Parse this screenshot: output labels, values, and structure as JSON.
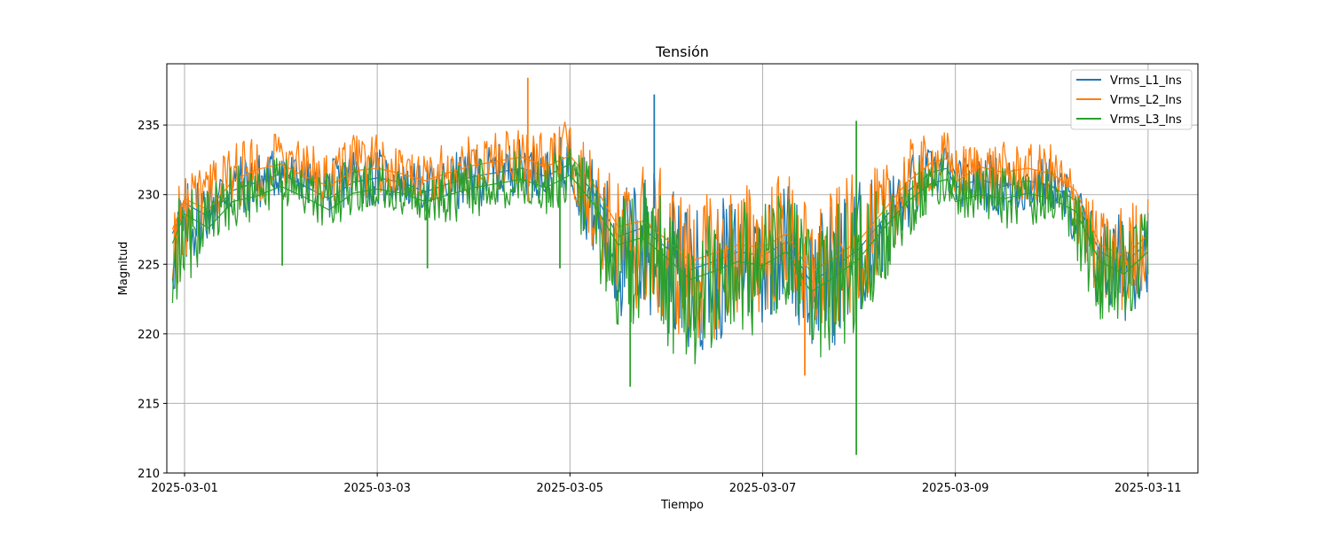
{
  "chart_data": {
    "type": "line",
    "title": "Tensión",
    "xlabel": "Tiempo",
    "ylabel": "Magnitud",
    "ylim": [
      210,
      239.4
    ],
    "xlim": [
      "2025-02-28T19:35",
      "2025-03-11T12:25"
    ],
    "x_ticks": [
      "2025-03-01",
      "2025-03-03",
      "2025-03-05",
      "2025-03-07",
      "2025-03-09",
      "2025-03-11"
    ],
    "y_ticks": [
      210,
      215,
      220,
      225,
      230,
      235
    ],
    "grid": true,
    "legend_position": "top-right",
    "x": [
      "2025-02-28T21:00",
      "2025-03-01T00:00",
      "2025-03-01T06:00",
      "2025-03-01T12:00",
      "2025-03-01T18:00",
      "2025-03-02T00:00",
      "2025-03-02T06:00",
      "2025-03-02T12:00",
      "2025-03-02T18:00",
      "2025-03-03T00:00",
      "2025-03-03T06:00",
      "2025-03-03T12:00",
      "2025-03-03T18:00",
      "2025-03-04T00:00",
      "2025-03-04T06:00",
      "2025-03-04T12:00",
      "2025-03-04T18:00",
      "2025-03-05T00:00",
      "2025-03-05T06:00",
      "2025-03-05T12:00",
      "2025-03-05T18:00",
      "2025-03-06T00:00",
      "2025-03-06T06:00",
      "2025-03-06T12:00",
      "2025-03-06T18:00",
      "2025-03-07T00:00",
      "2025-03-07T06:00",
      "2025-03-07T12:00",
      "2025-03-07T18:00",
      "2025-03-08T00:00",
      "2025-03-08T06:00",
      "2025-03-08T12:00",
      "2025-03-08T18:00",
      "2025-03-08T22:00",
      "2025-03-09T00:00",
      "2025-03-09T06:00",
      "2025-03-09T12:00",
      "2025-03-09T18:00",
      "2025-03-10T00:00",
      "2025-03-10T06:00",
      "2025-03-10T12:00",
      "2025-03-10T18:00",
      "2025-03-11T00:00"
    ],
    "series": [
      {
        "name": "Vrms_L1_Ins",
        "color": "#1f77b4",
        "values": [
          227.2,
          229.4,
          228.4,
          230.3,
          230.9,
          231.5,
          230.6,
          229.7,
          230.9,
          231.2,
          230.9,
          230.2,
          230.8,
          231.3,
          231.6,
          231.9,
          231.3,
          232.2,
          230.1,
          227.0,
          227.6,
          226.2,
          224.6,
          225.2,
          225.9,
          225.6,
          226.6,
          223.7,
          224.8,
          226.1,
          228.2,
          230.2,
          231.6,
          231.9,
          230.5,
          231.1,
          230.6,
          231.0,
          230.6,
          229.6,
          225.9,
          225.0,
          226.6
        ],
        "low": [
          221.9,
          223.9,
          226.7,
          228.4,
          228.7,
          229.9,
          229.4,
          228.2,
          229.4,
          229.1,
          229.3,
          228.7,
          228.7,
          229.1,
          229.4,
          230.2,
          229.1,
          230.0,
          225.3,
          220.8,
          220.9,
          219.6,
          218.4,
          219.1,
          220.2,
          220.6,
          222.2,
          218.9,
          219.1,
          220.9,
          224.1,
          227.3,
          229.4,
          230.1,
          229.2,
          228.9,
          228.3,
          228.6,
          228.9,
          226.3,
          221.1,
          220.6,
          223.1
        ],
        "high": [
          229.6,
          231.3,
          231.8,
          232.8,
          233.0,
          233.6,
          232.5,
          232.4,
          233.6,
          233.4,
          232.4,
          232.1,
          232.9,
          233.4,
          233.6,
          234.1,
          233.3,
          234.7,
          232.6,
          230.3,
          231.8,
          230.9,
          229.1,
          229.5,
          230.3,
          230.1,
          231.2,
          228.1,
          229.9,
          231.1,
          231.3,
          232.9,
          233.4,
          233.8,
          232.4,
          233.1,
          232.7,
          232.6,
          232.7,
          231.1,
          228.2,
          228.9,
          229.5
        ]
      },
      {
        "name": "Vrms_L2_Ins",
        "color": "#ff7f0e",
        "values": [
          227.5,
          229.7,
          228.9,
          231.0,
          231.8,
          232.2,
          231.3,
          230.6,
          231.7,
          231.9,
          231.5,
          231.0,
          231.6,
          232.1,
          232.4,
          232.7,
          232.0,
          232.8,
          230.7,
          227.7,
          228.1,
          226.8,
          225.2,
          225.8,
          226.4,
          226.2,
          227.2,
          224.4,
          225.5,
          226.7,
          228.8,
          230.9,
          232.3,
          232.6,
          230.9,
          232.0,
          231.6,
          231.9,
          231.5,
          230.3,
          226.4,
          225.6,
          227.1
        ],
        "low": [
          222.4,
          224.3,
          227.2,
          229.1,
          229.4,
          230.5,
          230.0,
          228.9,
          230.1,
          229.7,
          229.9,
          229.3,
          229.4,
          229.8,
          230.1,
          230.9,
          229.8,
          230.6,
          225.9,
          221.4,
          221.5,
          220.3,
          219.1,
          219.6,
          220.8,
          221.2,
          222.7,
          219.5,
          219.7,
          221.5,
          224.7,
          228.0,
          230.1,
          230.7,
          229.7,
          229.6,
          229.1,
          229.4,
          229.6,
          227.0,
          221.7,
          221.2,
          223.7
        ],
        "high": [
          230.2,
          232.0,
          232.6,
          233.8,
          234.2,
          234.7,
          233.5,
          233.4,
          234.5,
          234.4,
          233.2,
          233.0,
          233.9,
          234.3,
          234.5,
          235.2,
          234.3,
          235.6,
          233.2,
          231.1,
          232.6,
          231.7,
          229.8,
          230.2,
          231.1,
          230.9,
          232.0,
          228.9,
          230.6,
          231.8,
          232.0,
          233.9,
          234.4,
          234.6,
          233.4,
          234.0,
          233.8,
          233.6,
          233.7,
          231.9,
          228.8,
          229.5,
          230.1
        ]
      },
      {
        "name": "Vrms_L3_Ins",
        "color": "#2ca02c",
        "values": [
          226.5,
          228.6,
          227.6,
          229.5,
          229.9,
          230.6,
          229.8,
          228.9,
          230.1,
          230.4,
          230.1,
          229.5,
          230.0,
          230.5,
          230.8,
          231.1,
          230.5,
          231.4,
          229.3,
          226.4,
          226.9,
          225.5,
          223.9,
          224.5,
          225.2,
          224.9,
          225.9,
          223.0,
          224.1,
          225.4,
          227.5,
          229.5,
          230.8,
          231.1,
          229.5,
          230.0,
          229.7,
          230.1,
          229.7,
          228.8,
          225.2,
          224.3,
          225.9
        ],
        "low": [
          221.2,
          223.2,
          226.0,
          227.7,
          228.0,
          229.2,
          228.6,
          227.4,
          228.6,
          228.4,
          228.6,
          228.0,
          227.9,
          228.4,
          228.7,
          229.5,
          228.4,
          229.3,
          224.6,
          220.1,
          220.2,
          218.9,
          217.7,
          218.4,
          219.5,
          219.9,
          221.5,
          218.2,
          218.4,
          220.2,
          223.4,
          226.6,
          228.7,
          229.4,
          228.5,
          228.1,
          227.5,
          227.8,
          228.1,
          225.6,
          220.4,
          219.9,
          222.4
        ],
        "high": [
          228.9,
          230.6,
          231.0,
          232.0,
          232.2,
          232.8,
          231.7,
          231.6,
          232.8,
          232.6,
          231.6,
          231.3,
          232.1,
          232.6,
          232.8,
          233.3,
          232.5,
          233.9,
          231.8,
          229.5,
          231.0,
          230.1,
          228.3,
          228.8,
          229.6,
          229.4,
          230.5,
          227.4,
          229.2,
          230.4,
          230.6,
          232.2,
          232.7,
          233.1,
          231.7,
          232.3,
          231.9,
          231.8,
          231.9,
          230.4,
          227.5,
          228.2,
          228.8
        ]
      }
    ],
    "spikes": [
      {
        "series": "Vrms_L2_Ins",
        "x": "2025-03-04T13:30",
        "low": 229.5,
        "high": 238.4
      },
      {
        "series": "Vrms_L1_Ins",
        "x": "2025-03-05T21:00",
        "low": 229.0,
        "high": 237.2
      },
      {
        "series": "Vrms_L3_Ins",
        "x": "2025-03-07T23:20",
        "low": 211.3,
        "high": 235.3
      },
      {
        "series": "Vrms_L3_Ins",
        "x": "2025-03-04T21:30",
        "low": 224.7,
        "high": 231.5
      },
      {
        "series": "Vrms_L3_Ins",
        "x": "2025-03-02T00:20",
        "low": 224.9,
        "high": 231.0
      },
      {
        "series": "Vrms_L3_Ins",
        "x": "2025-03-03T12:30",
        "low": 224.7,
        "high": 230.8
      },
      {
        "series": "Vrms_L3_Ins",
        "x": "2025-03-05T15:00",
        "low": 216.2,
        "high": 226.0
      },
      {
        "series": "Vrms_L2_Ins",
        "x": "2025-03-07T10:30",
        "low": 217.0,
        "high": 226.5
      }
    ]
  }
}
